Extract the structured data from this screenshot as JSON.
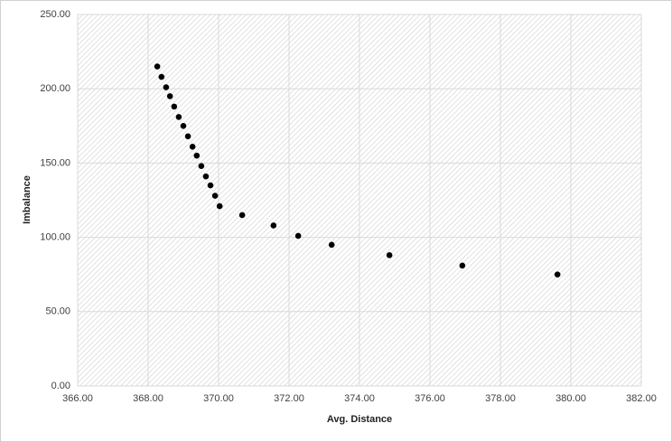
{
  "chart_data": {
    "type": "scatter",
    "x_label": "Avg. Distance",
    "y_label": "Imbalance",
    "series": [
      {
        "color": "#000000",
        "x": [
          368.26,
          368.38,
          368.51,
          368.62,
          368.74,
          368.87,
          369.0,
          369.13,
          369.26,
          369.38,
          369.51,
          369.64,
          369.77,
          369.9,
          370.03,
          370.67,
          371.56,
          372.26,
          373.21,
          374.85,
          376.92,
          379.62
        ],
        "values": [
          215,
          208,
          201,
          195,
          188,
          181,
          175,
          168,
          161,
          155,
          148,
          141,
          135,
          128,
          121,
          115,
          108,
          101,
          95,
          88,
          81,
          75
        ]
      }
    ],
    "xlim": [
      366,
      382
    ],
    "xticks": [
      {
        "value": 366,
        "label": "366.00"
      },
      {
        "value": 368,
        "label": "368.00"
      },
      {
        "value": 370,
        "label": "370.00"
      },
      {
        "value": 372,
        "label": "372.00"
      },
      {
        "value": 374,
        "label": "374.00"
      },
      {
        "value": 376,
        "label": "376.00"
      },
      {
        "value": 378,
        "label": "378.00"
      },
      {
        "value": 380,
        "label": "380.00"
      },
      {
        "value": 382,
        "label": "382.00"
      }
    ],
    "ylim": [
      0,
      250
    ],
    "yticks": [
      {
        "value": 0,
        "label": "0.00"
      },
      {
        "value": 50,
        "label": "50.00"
      },
      {
        "value": 100,
        "label": "100.00"
      },
      {
        "value": 150,
        "label": "150.00"
      },
      {
        "value": 200,
        "label": "200.00"
      },
      {
        "value": 250,
        "label": "250.00"
      }
    ],
    "grid": true
  }
}
